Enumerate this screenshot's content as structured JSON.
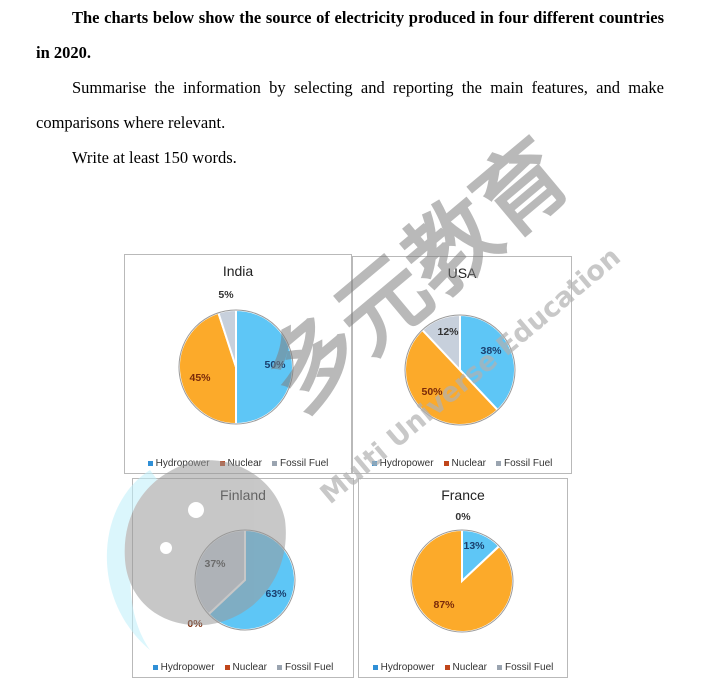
{
  "task": {
    "heading": "The charts below show the source of electricity produced in four different countries in 2020.",
    "instruction": "Summarise the information by selecting and reporting the main features, and make comparisons where relevant.",
    "word_count": "Write at least 150 words."
  },
  "colors": {
    "hydropower": "#5ec6f6",
    "nuclear": "#fcaa2a",
    "fossil_fuel": "#c7d0dc",
    "legend_hydropower": "#2f8fd6",
    "legend_nuclear": "#c0451a",
    "legend_fossil_fuel": "#9aa4b0"
  },
  "legend_labels": [
    "Hydropower",
    "Nuclear",
    "Fossil Fuel"
  ],
  "chart_data": [
    {
      "type": "pie",
      "title": "India",
      "labels": [
        "Hydropower",
        "Nuclear",
        "Fossil Fuel"
      ],
      "values": [
        50,
        45,
        5
      ],
      "value_labels": [
        "50%",
        "45%",
        "5%"
      ],
      "legend": "bottom"
    },
    {
      "type": "pie",
      "title": "USA",
      "labels": [
        "Hydropower",
        "Nuclear",
        "Fossil Fuel"
      ],
      "values": [
        38,
        50,
        12
      ],
      "value_labels": [
        "38%",
        "50%",
        "12%"
      ],
      "legend": "bottom"
    },
    {
      "type": "pie",
      "title": "Finland",
      "labels": [
        "Hydropower",
        "Nuclear",
        "Fossil Fuel"
      ],
      "values": [
        63,
        0,
        37
      ],
      "value_labels": [
        "63%",
        "0%",
        "37%"
      ],
      "legend": "bottom"
    },
    {
      "type": "pie",
      "title": "France",
      "labels": [
        "Hydropower",
        "Nuclear",
        "Fossil Fuel"
      ],
      "values": [
        13,
        87,
        0
      ],
      "value_labels": [
        "13%",
        "87%",
        "0%"
      ],
      "legend": "bottom"
    }
  ],
  "watermark": {
    "chinese": "多元教育",
    "english": "Multi Universe Education"
  }
}
